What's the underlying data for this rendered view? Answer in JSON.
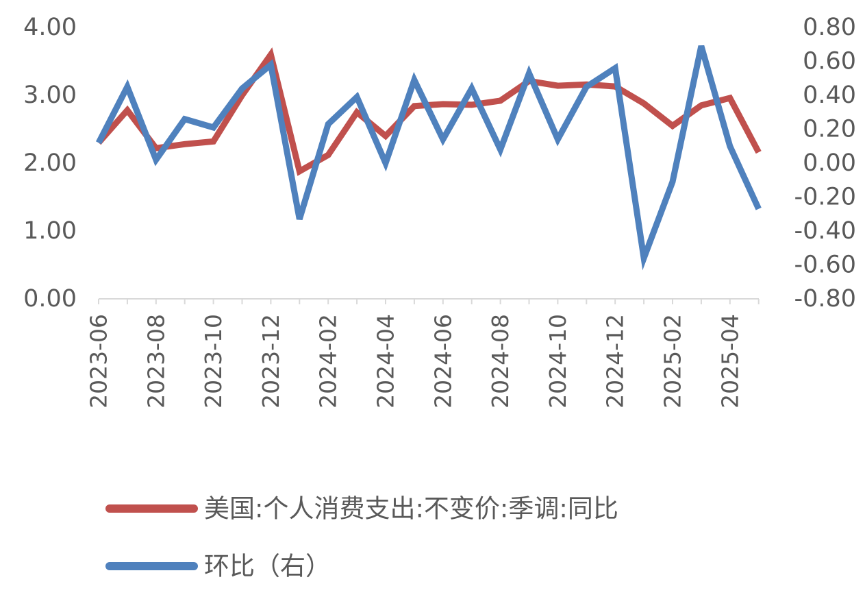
{
  "chart_data": {
    "type": "line",
    "x": [
      "2023-06",
      "2023-07",
      "2023-08",
      "2023-09",
      "2023-10",
      "2023-11",
      "2023-12",
      "2024-01",
      "2024-02",
      "2024-03",
      "2024-04",
      "2024-05",
      "2024-06",
      "2024-07",
      "2024-08",
      "2024-09",
      "2024-10",
      "2024-11",
      "2024-12",
      "2025-01",
      "2025-02",
      "2025-03",
      "2025-04",
      "2025-05"
    ],
    "x_tick_labels": [
      "2023-06",
      "2023-08",
      "2023-10",
      "2023-12",
      "2024-02",
      "2024-04",
      "2024-06",
      "2024-08",
      "2024-10",
      "2024-12",
      "2025-02",
      "2025-04"
    ],
    "series": [
      {
        "name": "美国:个人消费支出:不变价:季调:同比",
        "axis": "left",
        "color": "#C0504D",
        "values": [
          2.3,
          2.78,
          2.22,
          2.28,
          2.32,
          3.0,
          3.6,
          1.88,
          2.12,
          2.75,
          2.4,
          2.84,
          2.87,
          2.86,
          2.92,
          3.21,
          3.14,
          3.16,
          3.13,
          2.88,
          2.55,
          2.85,
          2.96,
          2.16
        ]
      },
      {
        "name": "环比（右）",
        "axis": "right",
        "color": "#4F81BD",
        "values": [
          0.12,
          0.45,
          0.02,
          0.26,
          0.21,
          0.44,
          0.58,
          -0.33,
          0.23,
          0.39,
          0.0,
          0.49,
          0.14,
          0.44,
          0.08,
          0.53,
          0.14,
          0.45,
          0.56,
          -0.56,
          -0.11,
          0.69,
          0.1,
          -0.27
        ]
      }
    ],
    "y_left": {
      "ylim": [
        0,
        4
      ],
      "tick_labels": [
        "0.00",
        "1.00",
        "2.00",
        "3.00",
        "4.00"
      ]
    },
    "y_right": {
      "ylim": [
        -0.8,
        0.8
      ],
      "tick_labels": [
        "-0.80",
        "-0.60",
        "-0.40",
        "-0.20",
        "0.00",
        "0.20",
        "0.40",
        "0.60",
        "0.80"
      ]
    },
    "grid": false,
    "legend_position": "bottom"
  }
}
